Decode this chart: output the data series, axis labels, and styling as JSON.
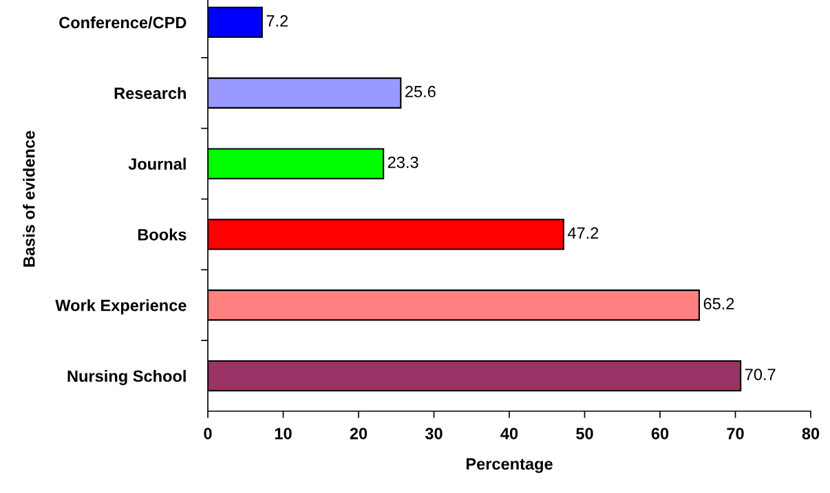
{
  "chart_data": {
    "type": "bar",
    "orientation": "horizontal",
    "categories": [
      "Conference/CPD",
      "Research",
      "Journal",
      "Books",
      "Work Experience",
      "Nursing School"
    ],
    "values": [
      7.2,
      25.6,
      23.3,
      47.2,
      65.2,
      70.7
    ],
    "colors": [
      "#0000ff",
      "#9999ff",
      "#00ff00",
      "#ff0000",
      "#ff8080",
      "#993366"
    ],
    "xlabel": "Percentage",
    "ylabel": "Basis of evidence",
    "xlim": [
      0,
      80
    ],
    "xticks": [
      0,
      10,
      20,
      30,
      40,
      50,
      60,
      70,
      80
    ],
    "grid": false,
    "data_labels": true
  }
}
